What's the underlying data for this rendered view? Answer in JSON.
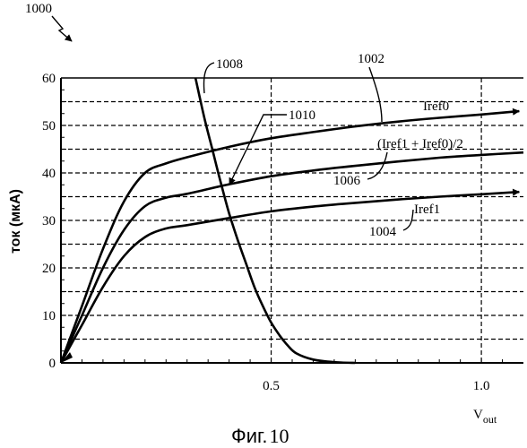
{
  "figure": {
    "ref_label": "1000",
    "caption": "Фиг.",
    "caption_number": "10"
  },
  "chart_data": {
    "type": "line",
    "ylabel": "ток (мкА)",
    "xlabel_main": "V",
    "xlabel_sub": "out",
    "xlim": [
      0,
      1.1
    ],
    "ylim": [
      0,
      60
    ],
    "grid": true,
    "y_ticks": [
      0,
      10,
      20,
      30,
      40,
      50,
      60
    ],
    "x_ticks": [
      0.5,
      1.0
    ],
    "x_tick_labels": [
      "0.5",
      "1.0"
    ],
    "series": [
      {
        "key": "iref0",
        "name": "Iref0",
        "ref": "1002",
        "arrow": true,
        "x": [
          0.0,
          0.05,
          0.1,
          0.15,
          0.2,
          0.25,
          0.3,
          0.4,
          0.5,
          0.6,
          0.7,
          0.8,
          0.9,
          1.0,
          1.09
        ],
        "y": [
          0.0,
          12.0,
          24.0,
          34.0,
          40.0,
          42.0,
          43.3,
          45.5,
          47.3,
          48.6,
          49.8,
          50.8,
          51.6,
          52.3,
          53.0
        ]
      },
      {
        "key": "mid",
        "name": "(Iref1 + Iref0)/2",
        "ref": "1006",
        "arrow": false,
        "x": [
          0.0,
          0.05,
          0.1,
          0.15,
          0.2,
          0.25,
          0.3,
          0.4,
          0.5,
          0.6,
          0.7,
          0.8,
          0.9,
          1.0,
          1.1
        ],
        "y": [
          0.0,
          10.0,
          20.0,
          28.0,
          33.0,
          34.8,
          35.6,
          37.6,
          39.3,
          40.5,
          41.5,
          42.4,
          43.2,
          43.8,
          44.3
        ]
      },
      {
        "key": "iref1",
        "name": "Iref1",
        "ref": "1004",
        "arrow": true,
        "x": [
          0.0,
          0.05,
          0.1,
          0.15,
          0.2,
          0.25,
          0.3,
          0.4,
          0.5,
          0.6,
          0.7,
          0.8,
          0.9,
          1.0,
          1.09
        ],
        "y": [
          0.0,
          8.0,
          16.0,
          22.5,
          26.5,
          28.3,
          29.0,
          30.5,
          31.9,
          32.9,
          33.7,
          34.4,
          35.0,
          35.5,
          36.0
        ]
      },
      {
        "key": "load",
        "ref": "1008",
        "arrow": false,
        "x": [
          0.32,
          0.34,
          0.36,
          0.38,
          0.4,
          0.42,
          0.44,
          0.46,
          0.48,
          0.5,
          0.52,
          0.54,
          0.56,
          0.6,
          0.65,
          0.7
        ],
        "y": [
          60.0,
          52.0,
          45.0,
          38.0,
          31.5,
          26.0,
          21.0,
          16.0,
          12.0,
          8.5,
          5.8,
          3.6,
          2.0,
          0.7,
          0.15,
          0.0
        ]
      }
    ],
    "crossing_ref": "1010"
  }
}
